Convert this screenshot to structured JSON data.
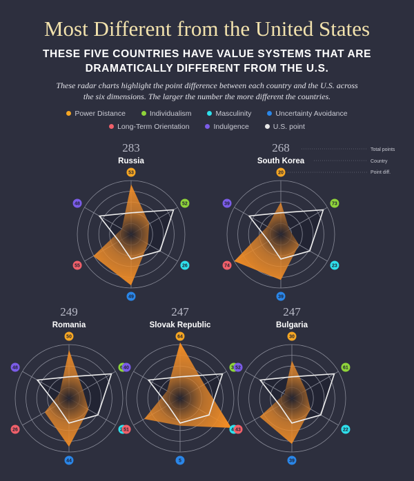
{
  "title": "Most Different from the United States",
  "subtitle_lines": [
    "THESE FIVE COUNTRIES HAVE VALUE SYSTEMS THAT ARE",
    "DRAMATICALLY DIFFERENT FROM THE U.S."
  ],
  "description_lines": [
    "These radar charts highlight the point difference between each country and the U.S. across",
    "the six dimensions. The larger the number the more different the countries."
  ],
  "legend": [
    {
      "label": "Power Distance",
      "color": "#f5a623"
    },
    {
      "label": "Individualism",
      "color": "#8fd43a"
    },
    {
      "label": "Masculinity",
      "color": "#2ee0ec"
    },
    {
      "label": "Uncertainty Avoidance",
      "color": "#2a86e8"
    },
    {
      "label": "Long-Term Orientation",
      "color": "#f0606a"
    },
    {
      "label": "Indulgence",
      "color": "#7b5ce8"
    },
    {
      "label": "U.S. point",
      "color": "#e8e8e8"
    }
  ],
  "annotations": {
    "total": "Total points",
    "country": "Country",
    "diff": "Point diff."
  },
  "chart_data": {
    "type": "radar",
    "dimensions": [
      "Power Distance",
      "Individualism",
      "Masculinity",
      "Uncertainty Avoidance",
      "Long-Term Orientation",
      "Indulgence"
    ],
    "scale_max": 100,
    "us_values": [
      40,
      91,
      62,
      46,
      26,
      68
    ],
    "countries": [
      {
        "name": "Russia",
        "total": "283",
        "values": [
          93,
          39,
          36,
          95,
          81,
          20
        ],
        "diffs": [
          "53",
          "52",
          "26",
          "49",
          "55",
          "48"
        ]
      },
      {
        "name": "South Korea",
        "total": "268",
        "values": [
          60,
          18,
          39,
          85,
          100,
          29
        ],
        "diffs": [
          "20",
          "73",
          "23",
          "39",
          "74",
          "39"
        ]
      },
      {
        "name": "Romania",
        "total": "249",
        "values": [
          90,
          30,
          42,
          90,
          52,
          20
        ],
        "diffs": [
          "50",
          "61",
          "20",
          "44",
          "26",
          "48"
        ]
      },
      {
        "name": "Slovak Republic",
        "total": "247",
        "values": [
          104,
          52,
          110,
          51,
          77,
          28
        ],
        "diffs": [
          "64",
          "39",
          "48",
          "5",
          "51",
          "40"
        ]
      },
      {
        "name": "Bulgaria",
        "total": "247",
        "values": [
          70,
          30,
          40,
          85,
          69,
          16
        ],
        "diffs": [
          "30",
          "61",
          "22",
          "39",
          "43",
          "52"
        ]
      }
    ]
  }
}
